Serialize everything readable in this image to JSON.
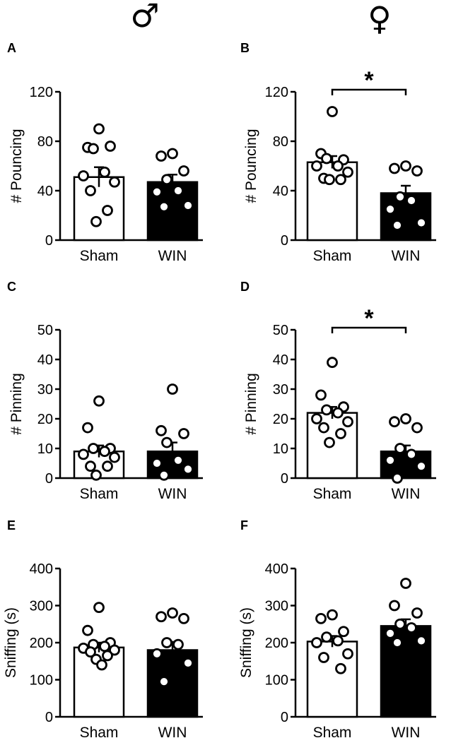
{
  "header": {
    "left_symbol": "♂",
    "right_symbol": "♀"
  },
  "chart_data": [
    {
      "panel": "A",
      "type": "bar",
      "ylabel": "# Pouncing",
      "ylim": [
        0,
        120
      ],
      "yticks": [
        0,
        40,
        80,
        120
      ],
      "categories": [
        "Sham",
        "WIN"
      ],
      "means": [
        51,
        47
      ],
      "sem": [
        8,
        6
      ],
      "significance": null,
      "points": [
        [
          90,
          75,
          76,
          74,
          55,
          52,
          47,
          40,
          24,
          15
        ],
        [
          70,
          68,
          56,
          49,
          40,
          39,
          28,
          27
        ]
      ]
    },
    {
      "panel": "B",
      "type": "bar",
      "ylabel": "# Pouncing",
      "ylim": [
        0,
        120
      ],
      "yticks": [
        0,
        40,
        80,
        120
      ],
      "categories": [
        "Sham",
        "WIN"
      ],
      "means": [
        63,
        38
      ],
      "sem": [
        5,
        6
      ],
      "significance": "*",
      "points": [
        [
          104,
          70,
          65,
          66,
          60,
          60,
          55,
          50,
          49,
          49
        ],
        [
          60,
          58,
          56,
          35,
          32,
          25,
          14,
          12
        ]
      ]
    },
    {
      "panel": "C",
      "type": "bar",
      "ylabel": "# Pinning",
      "ylim": [
        0,
        50
      ],
      "yticks": [
        0,
        10,
        20,
        30,
        40,
        50
      ],
      "categories": [
        "Sham",
        "WIN"
      ],
      "means": [
        9,
        9
      ],
      "sem": [
        2,
        3
      ],
      "significance": null,
      "points": [
        [
          26,
          17,
          10,
          10,
          9,
          8,
          7,
          4,
          4,
          1
        ],
        [
          30,
          16,
          15,
          12,
          6,
          5,
          3,
          1
        ]
      ]
    },
    {
      "panel": "D",
      "type": "bar",
      "ylabel": "# Pinning",
      "ylim": [
        0,
        50
      ],
      "yticks": [
        0,
        10,
        20,
        30,
        40,
        50
      ],
      "categories": [
        "Sham",
        "WIN"
      ],
      "means": [
        22,
        9
      ],
      "sem": [
        2,
        2
      ],
      "significance": "*",
      "points": [
        [
          39,
          28,
          24,
          23,
          22,
          20,
          19,
          17,
          15,
          12
        ],
        [
          20,
          19,
          17,
          10,
          8,
          6,
          4,
          0
        ]
      ]
    },
    {
      "panel": "E",
      "type": "bar",
      "ylabel": "Sniffing (s)",
      "ylim": [
        0,
        400
      ],
      "yticks": [
        0,
        100,
        200,
        300,
        400
      ],
      "categories": [
        "Sham",
        "WIN"
      ],
      "means": [
        187,
        180
      ],
      "sem": [
        13,
        22
      ],
      "significance": null,
      "points": [
        [
          295,
          233,
          200,
          195,
          190,
          185,
          180,
          175,
          165,
          155,
          140
        ],
        [
          280,
          270,
          265,
          200,
          195,
          170,
          145,
          95
        ]
      ]
    },
    {
      "panel": "F",
      "type": "bar",
      "ylabel": "Sniffing (s)",
      "ylim": [
        0,
        400
      ],
      "yticks": [
        0,
        100,
        200,
        300,
        400
      ],
      "categories": [
        "Sham",
        "WIN"
      ],
      "means": [
        203,
        245
      ],
      "sem": [
        15,
        18
      ],
      "significance": null,
      "points": [
        [
          275,
          265,
          230,
          215,
          205,
          200,
          170,
          160,
          130
        ],
        [
          360,
          300,
          280,
          250,
          240,
          225,
          205,
          200
        ]
      ]
    }
  ]
}
